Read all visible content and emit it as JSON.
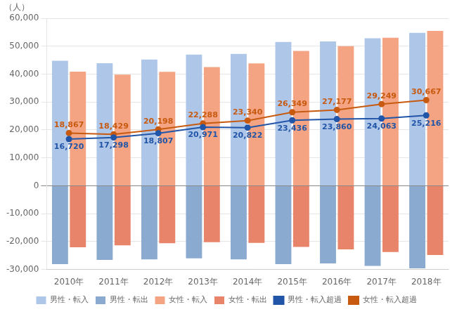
{
  "chart_data": {
    "type": "bar",
    "ylabel": "（人）",
    "categories": [
      "2010年",
      "2011年",
      "2012年",
      "2013年",
      "2014年",
      "2015年",
      "2016年",
      "2017年",
      "2018年"
    ],
    "series": [
      {
        "name": "男性・転入",
        "type": "bar",
        "color": "#aec6e8",
        "values": [
          44800,
          43900,
          45200,
          47000,
          47200,
          51500,
          51700,
          52800,
          54800
        ]
      },
      {
        "name": "男性・転出",
        "type": "bar",
        "color": "#8aaad0",
        "values": [
          -28080,
          -26602,
          -26393,
          -26029,
          -26378,
          -28064,
          -27840,
          -28737,
          -29584
        ]
      },
      {
        "name": "女性・転入",
        "type": "bar",
        "color": "#f4a482",
        "values": [
          40900,
          39800,
          40800,
          42500,
          43800,
          48300,
          50000,
          53000,
          55500
        ]
      },
      {
        "name": "女性・転出",
        "type": "bar",
        "color": "#e8846a",
        "values": [
          -22033,
          -21371,
          -20602,
          -20212,
          -20460,
          -21951,
          -22823,
          -23751,
          -24833
        ]
      },
      {
        "name": "男性・転入超過",
        "type": "line",
        "color": "#2155a8",
        "marker": "circle",
        "data_labels": true,
        "values": [
          16720,
          17298,
          18807,
          20971,
          20822,
          23436,
          23860,
          24063,
          25216
        ],
        "value_labels": [
          "16,720",
          "17,298",
          "18,807",
          "20,971",
          "20,822",
          "23,436",
          "23,860",
          "24,063",
          "25,216"
        ]
      },
      {
        "name": "女性・転入超過",
        "type": "line",
        "color": "#c85a10",
        "marker": "circle",
        "data_labels": true,
        "values": [
          18867,
          18429,
          20198,
          22288,
          23340,
          26349,
          27177,
          29249,
          30667
        ],
        "value_labels": [
          "18,867",
          "18,429",
          "20,198",
          "22,288",
          "23,340",
          "26,349",
          "27,177",
          "29,249",
          "30,667"
        ]
      }
    ],
    "ylim": [
      -30000,
      60000
    ],
    "yticks": [
      {
        "value": -30000,
        "label": "-30,000"
      },
      {
        "value": -20000,
        "label": "-20,000"
      },
      {
        "value": -10000,
        "label": "-10,000"
      },
      0,
      {
        "value": 10000,
        "label": "10,000"
      },
      {
        "value": 20000,
        "label": "20,000"
      },
      {
        "value": 30000,
        "label": "30,000"
      },
      {
        "value": 40000,
        "label": "40,000"
      },
      {
        "value": 50000,
        "label": "50,000"
      },
      {
        "value": 60000,
        "label": "60,000"
      }
    ],
    "grid": true,
    "legend": "bottom"
  }
}
